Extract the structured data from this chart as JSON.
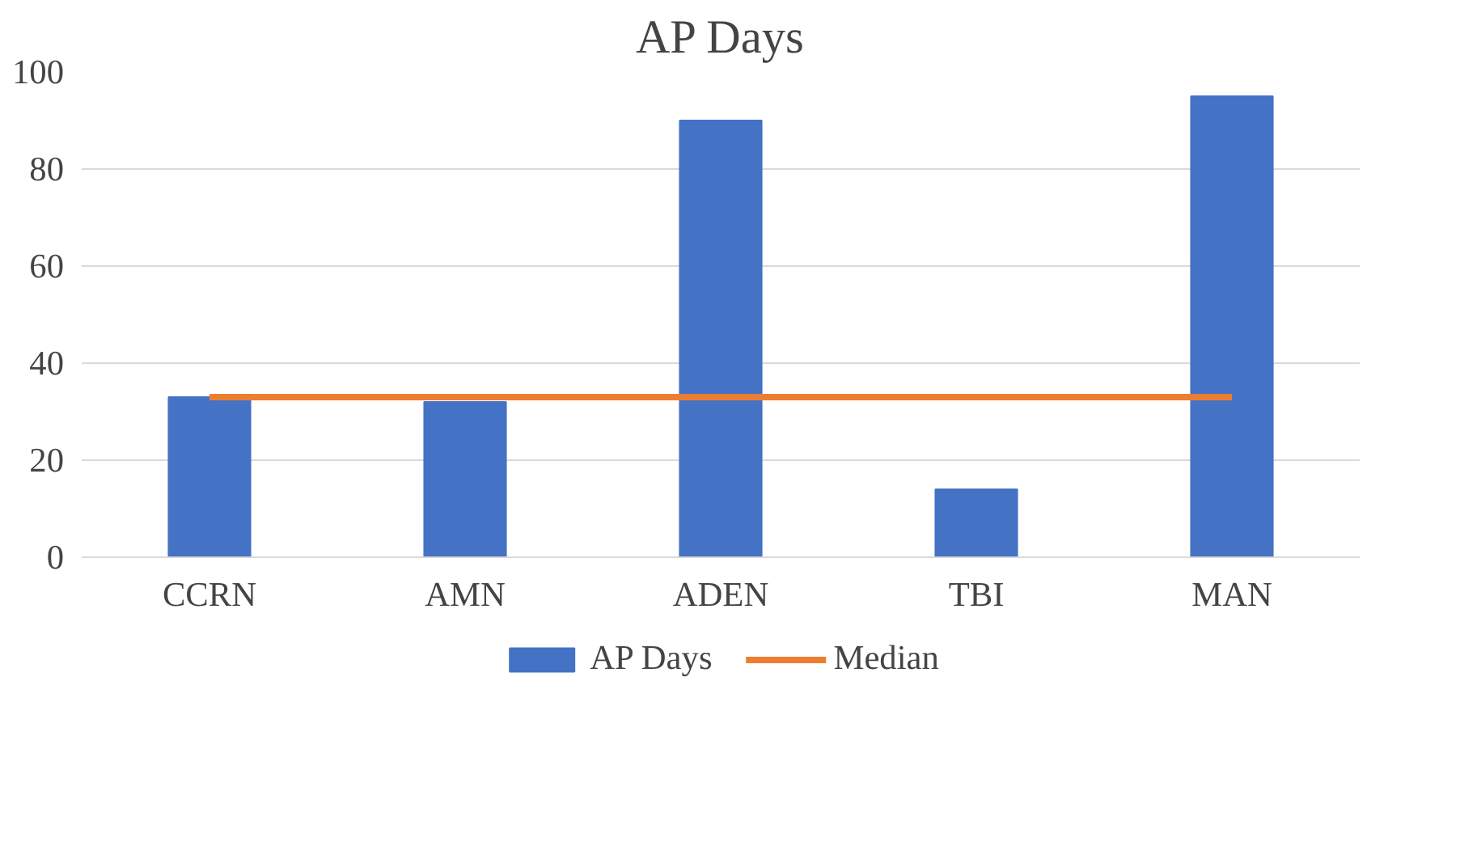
{
  "chart_data": {
    "type": "bar",
    "title": "AP Days",
    "categories": [
      "CCRN",
      "AMN",
      "ADEN",
      "TBI",
      "MAN"
    ],
    "series": [
      {
        "name": "AP Days",
        "color": "#4472c4",
        "values": [
          33,
          32,
          90,
          14,
          95
        ]
      },
      {
        "name": "Median",
        "type": "line",
        "color": "#ed7d31",
        "values": [
          33,
          33,
          33,
          33,
          33
        ]
      }
    ],
    "ylim": [
      0,
      100
    ],
    "yticks": [
      0,
      20,
      40,
      60,
      80,
      100
    ],
    "grid": "y",
    "legend": "bottom"
  }
}
